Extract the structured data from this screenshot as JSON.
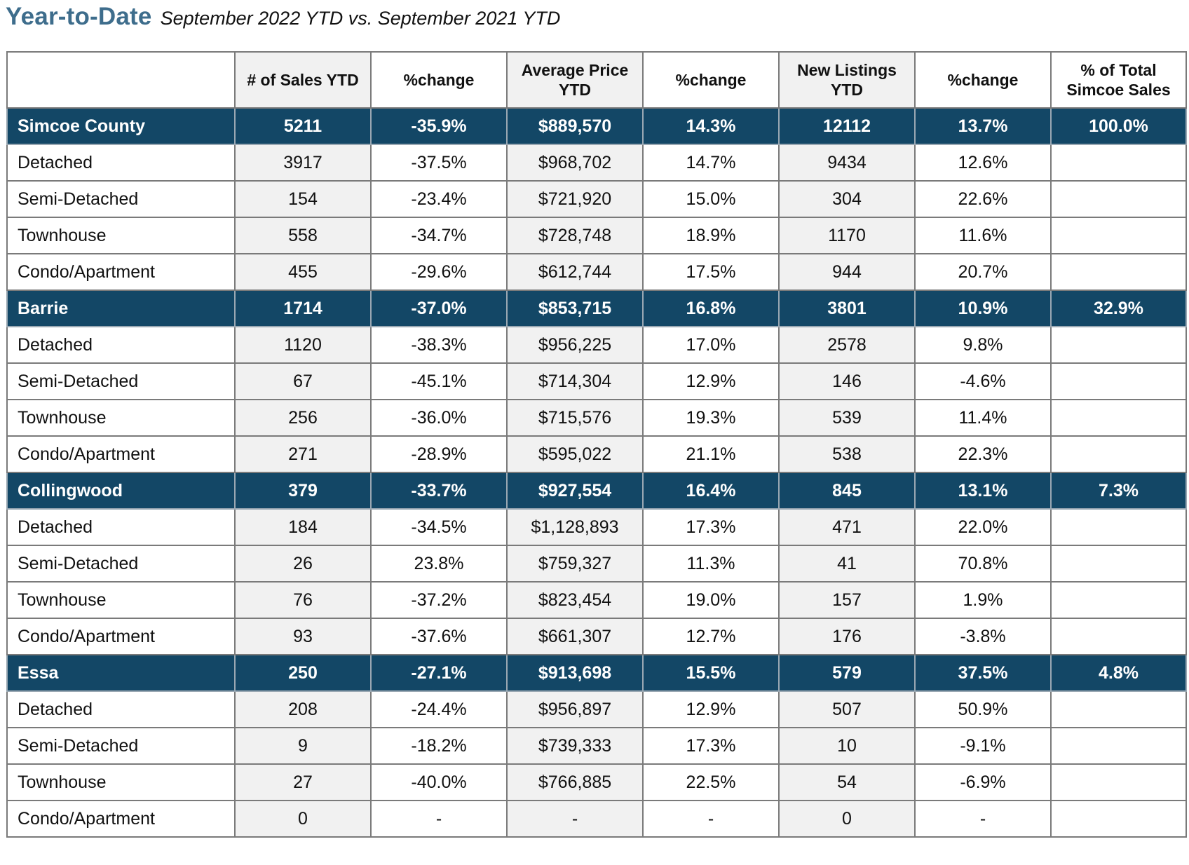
{
  "header": {
    "title": "Year-to-Date",
    "subtitle": "September 2022 YTD vs. September 2021 YTD"
  },
  "colors": {
    "title": "#3e6d8c",
    "region_row_bg": "#134766",
    "region_row_text": "#ffffff",
    "cell_shade": "#f1f1f1",
    "border": "#7a7a7a"
  },
  "table": {
    "columns": [
      "",
      "# of Sales YTD",
      "%change",
      "Average Price YTD",
      "%change",
      "New Listings YTD",
      "%change",
      "% of Total Simcoe Sales"
    ],
    "rows": [
      {
        "type": "region",
        "cells": [
          "Simcoe County",
          "5211",
          "-35.9%",
          "$889,570",
          "14.3%",
          "12112",
          "13.7%",
          "100.0%"
        ]
      },
      {
        "type": "sub",
        "cells": [
          "Detached",
          "3917",
          "-37.5%",
          "$968,702",
          "14.7%",
          "9434",
          "12.6%",
          ""
        ]
      },
      {
        "type": "sub",
        "cells": [
          "Semi-Detached",
          "154",
          "-23.4%",
          "$721,920",
          "15.0%",
          "304",
          "22.6%",
          ""
        ]
      },
      {
        "type": "sub",
        "cells": [
          "Townhouse",
          "558",
          "-34.7%",
          "$728,748",
          "18.9%",
          "1170",
          "11.6%",
          ""
        ]
      },
      {
        "type": "sub",
        "cells": [
          "Condo/Apartment",
          "455",
          "-29.6%",
          "$612,744",
          "17.5%",
          "944",
          "20.7%",
          ""
        ]
      },
      {
        "type": "region",
        "cells": [
          "Barrie",
          "1714",
          "-37.0%",
          "$853,715",
          "16.8%",
          "3801",
          "10.9%",
          "32.9%"
        ]
      },
      {
        "type": "sub",
        "cells": [
          "Detached",
          "1120",
          "-38.3%",
          "$956,225",
          "17.0%",
          "2578",
          "9.8%",
          ""
        ]
      },
      {
        "type": "sub",
        "cells": [
          "Semi-Detached",
          "67",
          "-45.1%",
          "$714,304",
          "12.9%",
          "146",
          "-4.6%",
          ""
        ]
      },
      {
        "type": "sub",
        "cells": [
          "Townhouse",
          "256",
          "-36.0%",
          "$715,576",
          "19.3%",
          "539",
          "11.4%",
          ""
        ]
      },
      {
        "type": "sub",
        "cells": [
          "Condo/Apartment",
          "271",
          "-28.9%",
          "$595,022",
          "21.1%",
          "538",
          "22.3%",
          ""
        ]
      },
      {
        "type": "region",
        "cells": [
          "Collingwood",
          "379",
          "-33.7%",
          "$927,554",
          "16.4%",
          "845",
          "13.1%",
          "7.3%"
        ]
      },
      {
        "type": "sub",
        "cells": [
          "Detached",
          "184",
          "-34.5%",
          "$1,128,893",
          "17.3%",
          "471",
          "22.0%",
          ""
        ]
      },
      {
        "type": "sub",
        "cells": [
          "Semi-Detached",
          "26",
          "23.8%",
          "$759,327",
          "11.3%",
          "41",
          "70.8%",
          ""
        ]
      },
      {
        "type": "sub",
        "cells": [
          "Townhouse",
          "76",
          "-37.2%",
          "$823,454",
          "19.0%",
          "157",
          "1.9%",
          ""
        ]
      },
      {
        "type": "sub",
        "cells": [
          "Condo/Apartment",
          "93",
          "-37.6%",
          "$661,307",
          "12.7%",
          "176",
          "-3.8%",
          ""
        ]
      },
      {
        "type": "region",
        "cells": [
          "Essa",
          "250",
          "-27.1%",
          "$913,698",
          "15.5%",
          "579",
          "37.5%",
          "4.8%"
        ]
      },
      {
        "type": "sub",
        "cells": [
          "Detached",
          "208",
          "-24.4%",
          "$956,897",
          "12.9%",
          "507",
          "50.9%",
          ""
        ]
      },
      {
        "type": "sub",
        "cells": [
          "Semi-Detached",
          "9",
          "-18.2%",
          "$739,333",
          "17.3%",
          "10",
          "-9.1%",
          ""
        ]
      },
      {
        "type": "sub",
        "cells": [
          "Townhouse",
          "27",
          "-40.0%",
          "$766,885",
          "22.5%",
          "54",
          "-6.9%",
          ""
        ]
      },
      {
        "type": "sub",
        "cells": [
          "Condo/Apartment",
          "0",
          "-",
          "-",
          "-",
          "0",
          "-",
          ""
        ]
      }
    ]
  }
}
